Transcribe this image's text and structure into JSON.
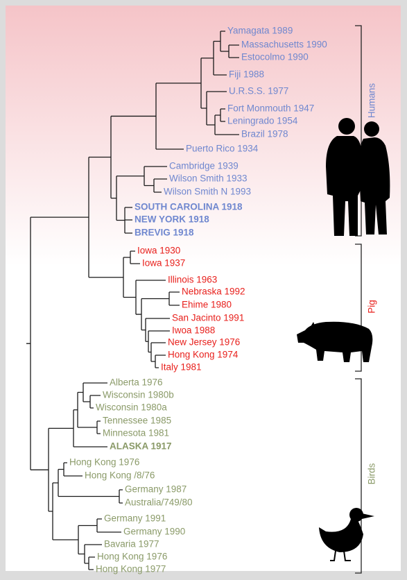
{
  "groups": [
    {
      "label": "Humans",
      "leaves": [
        "Yamagata 1989",
        "Massachusetts 1990",
        "Estocolmo 1990",
        "Fiji 1988",
        "U.R.S.S. 1977",
        "Fort Monmouth 1947",
        "Leningrado 1954",
        "Brazil 1978",
        "Puerto Rico 1934",
        "Cambridge 1939",
        "Wilson Smith 1933",
        "Wilson Smith N 1993",
        "SOUTH CAROLINA 1918",
        "NEW YORK 1918",
        "BREVIG 1918"
      ]
    },
    {
      "label": "Pig",
      "leaves": [
        "Iowa 1930",
        "Iowa 1937",
        "Illinois 1963",
        "Nebraska 1992",
        "Ehime 1980",
        "San Jacinto 1991",
        "Iwoa 1988",
        "New Jersey 1976",
        "Hong Kong 1974",
        "Italy 1981"
      ]
    },
    {
      "label": "Birds",
      "leaves": [
        "Alberta 1976",
        "Wisconsin 1980b",
        "Wisconsin 1980a",
        "Tennessee 1985",
        "Minnesota 1981",
        "ALASKA 1917",
        "Hong Kong 1976",
        "Hong Kong /8/76",
        "Germany 1987",
        "Australia/749/80",
        "Germany 1991",
        "Germany 1990",
        "Bavaria 1977",
        "Hong Kong 1976",
        "Hong Kong 1977"
      ]
    }
  ]
}
